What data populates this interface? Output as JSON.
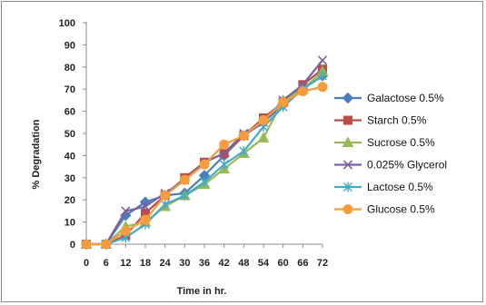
{
  "chart_data": {
    "type": "line",
    "title": "",
    "xlabel": "Time in hr.",
    "ylabel": "% Degradation",
    "x": [
      0,
      6,
      12,
      18,
      24,
      30,
      36,
      42,
      48,
      54,
      60,
      66,
      72
    ],
    "x_tick_labels": [
      "0",
      "6",
      "12",
      "18",
      "24",
      "30",
      "36",
      "42",
      "48",
      "54",
      "60",
      "66",
      "72"
    ],
    "ylim": [
      0,
      100
    ],
    "y_ticks": [
      0,
      10,
      20,
      30,
      40,
      50,
      60,
      70,
      80,
      90,
      100
    ],
    "y_tick_labels": [
      "0",
      "10",
      "20",
      "30",
      "40",
      "50",
      "60",
      "70",
      "80",
      "90",
      "100"
    ],
    "grid": false,
    "legend_position": "right",
    "series": [
      {
        "name": "Galactose 0.5%",
        "color": "#4a7ebb",
        "marker": "diamond",
        "values": [
          0,
          0,
          13,
          19,
          22,
          23,
          31,
          40,
          49,
          55,
          63,
          70,
          76
        ]
      },
      {
        "name": "Starch 0.5%",
        "color": "#be4b48",
        "marker": "square",
        "values": [
          0,
          0,
          4,
          14,
          22,
          30,
          37,
          41,
          49,
          57,
          64,
          72,
          79
        ]
      },
      {
        "name": "Sucrose 0.5%",
        "color": "#98b954",
        "marker": "triangle",
        "values": [
          0,
          0,
          8,
          10,
          17,
          22,
          27,
          34,
          41,
          48,
          65,
          70,
          78
        ]
      },
      {
        "name": "0.025% Glycerol",
        "color": "#7d60a0",
        "marker": "x",
        "values": [
          0,
          0,
          15,
          17,
          23,
          29,
          37,
          41,
          50,
          55,
          65,
          72,
          83
        ]
      },
      {
        "name": "Lactose 0.5%",
        "color": "#46aac5",
        "marker": "star",
        "values": [
          0,
          0,
          3,
          9,
          18,
          22,
          28,
          36,
          42,
          53,
          62,
          70,
          76
        ]
      },
      {
        "name": "Glucose 0.5%",
        "color": "#f59d3e",
        "marker": "circle",
        "values": [
          0,
          0,
          6,
          11,
          22,
          29,
          36,
          45,
          49,
          56,
          64,
          69,
          71
        ]
      }
    ]
  }
}
